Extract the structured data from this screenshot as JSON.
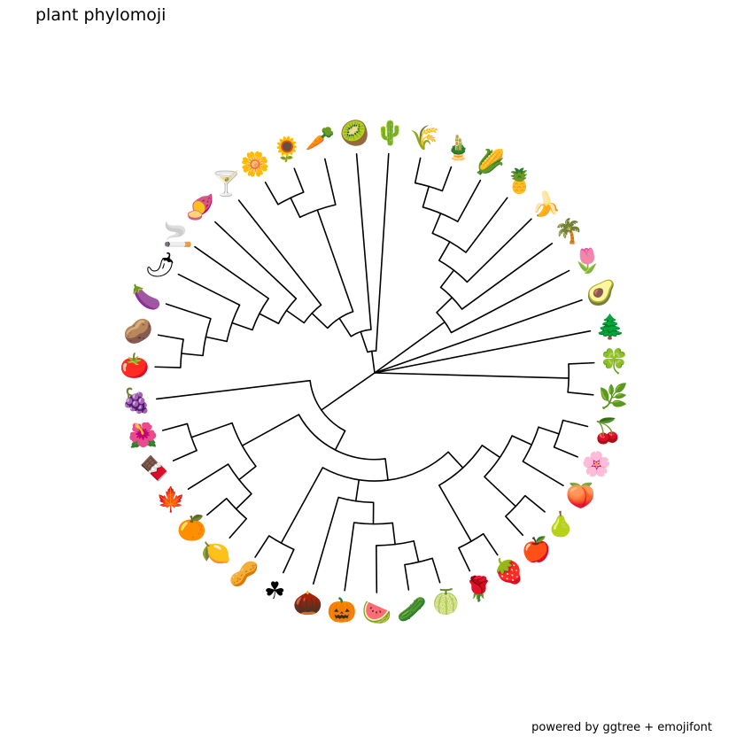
{
  "title": "plant phylomoji",
  "caption": "powered by ggtree + emojifont",
  "colors": {
    "branch": "#000000",
    "background": "#ffffff"
  },
  "tips": [
    {
      "name": "deciduous-tree",
      "glyph": "🌲"
    },
    {
      "name": "avocado",
      "glyph": "🥑"
    },
    {
      "name": "tulip",
      "glyph": "🌷"
    },
    {
      "name": "palm-tree",
      "glyph": "🌴"
    },
    {
      "name": "banana",
      "glyph": "🍌"
    },
    {
      "name": "pineapple",
      "glyph": "🍍"
    },
    {
      "name": "corn",
      "glyph": "🌽"
    },
    {
      "name": "bamboo",
      "glyph": "🎍"
    },
    {
      "name": "wheat",
      "glyph": "🌾"
    },
    {
      "name": "cactus",
      "glyph": "🌵"
    },
    {
      "name": "kiwi",
      "glyph": "🥝"
    },
    {
      "name": "carrot",
      "glyph": "🥕"
    },
    {
      "name": "sunflower",
      "glyph": "🌻"
    },
    {
      "name": "daisy",
      "glyph": "🌼"
    },
    {
      "name": "cocktail",
      "glyph": "🍸"
    },
    {
      "name": "sweet-potato",
      "glyph": "🍠"
    },
    {
      "name": "cigarette",
      "glyph": "🚬"
    },
    {
      "name": "chili-pepper",
      "glyph": "🌶"
    },
    {
      "name": "eggplant",
      "glyph": "🍆"
    },
    {
      "name": "potato",
      "glyph": "🥔"
    },
    {
      "name": "tomato",
      "glyph": "🍅"
    },
    {
      "name": "grapes",
      "glyph": "🍇"
    },
    {
      "name": "hibiscus",
      "glyph": "🌺"
    },
    {
      "name": "chocolate",
      "glyph": "🍫"
    },
    {
      "name": "maple-leaf",
      "glyph": "🍁"
    },
    {
      "name": "tangerine",
      "glyph": "🍊"
    },
    {
      "name": "lemon",
      "glyph": "🍋"
    },
    {
      "name": "peanuts",
      "glyph": "🥜"
    },
    {
      "name": "shamrock",
      "glyph": "☘"
    },
    {
      "name": "chestnut",
      "glyph": "🌰"
    },
    {
      "name": "jack-o-lantern",
      "glyph": "🎃"
    },
    {
      "name": "watermelon",
      "glyph": "🍉"
    },
    {
      "name": "cucumber",
      "glyph": "🥒"
    },
    {
      "name": "melon",
      "glyph": "🍈"
    },
    {
      "name": "rose",
      "glyph": "🌹"
    },
    {
      "name": "strawberry",
      "glyph": "🍓"
    },
    {
      "name": "apple",
      "glyph": "🍎"
    },
    {
      "name": "pear",
      "glyph": "🍐"
    },
    {
      "name": "peach",
      "glyph": "🍑"
    },
    {
      "name": "cherry-blossom",
      "glyph": "🌸"
    },
    {
      "name": "cherries",
      "glyph": "🍒"
    },
    {
      "name": "herb",
      "glyph": "🌿"
    },
    {
      "name": "four-leaf-clover",
      "glyph": "🍀"
    }
  ],
  "tree": [
    "root",
    [
      [
        "tip",
        0
      ],
      [
        "tip",
        1
      ],
      [
        "n",
        [
          [
            "tip",
            2
          ],
          [
            "n",
            [
              [
                "tip",
                3
              ],
              [
                "n",
                [
                  [
                    "tip",
                    4
                  ],
                  [
                    "n",
                    [
                      [
                        "tip",
                        5
                      ],
                      [
                        "n",
                        [
                          [
                            "tip",
                            6
                          ],
                          [
                            "n",
                            [
                              [
                                "tip",
                                7
                              ],
                              [
                                "tip",
                                8
                              ]
                            ]
                          ]
                        ]
                      ]
                    ]
                  ]
                ]
              ]
            ]
          ]
        ]
      ],
      [
        "n",
        [
          [
            "tip",
            9
          ],
          [
            "n",
            [
              [
                "tip",
                10
              ],
              [
                "n",
                [
                  [
                    "n",
                    [
                      [
                        "tip",
                        11
                      ],
                      [
                        "n",
                        [
                          [
                            "tip",
                            12
                          ],
                          [
                            "tip",
                            13
                          ]
                        ]
                      ]
                    ]
                  ],
                  [
                    "n",
                    [
                      [
                        "tip",
                        14
                      ],
                      [
                        "n",
                        [
                          [
                            "tip",
                            15
                          ],
                          [
                            "n",
                            [
                              [
                                "tip",
                                16
                              ],
                              [
                                "n",
                                [
                                  [
                                    "tip",
                                    17
                                  ],
                                  [
                                    "n",
                                    [
                                      [
                                        "tip",
                                        18
                                      ],
                                      [
                                        "n",
                                        [
                                          [
                                            "tip",
                                            19
                                          ],
                                          [
                                            "tip",
                                            20
                                          ]
                                        ]
                                      ]
                                    ]
                                  ]
                                ]
                              ]
                            ]
                          ]
                        ]
                      ]
                    ]
                  ]
                ]
              ]
            ]
          ]
        ]
      ],
      [
        "n",
        [
          [
            "tip",
            21
          ],
          [
            "n",
            [
              [
                "n",
                [
                  [
                    "n",
                    [
                      [
                        "tip",
                        22
                      ],
                      [
                        "tip",
                        23
                      ]
                    ]
                  ],
                  [
                    "n",
                    [
                      [
                        "tip",
                        24
                      ],
                      [
                        "n",
                        [
                          [
                            "tip",
                            25
                          ],
                          [
                            "tip",
                            26
                          ]
                        ]
                      ]
                    ]
                  ]
                ]
              ],
              [
                "n",
                [
                  [
                    "n",
                    [
                      [
                        "tip",
                        27
                      ],
                      [
                        "tip",
                        28
                      ]
                    ]
                  ],
                  [
                    "n",
                    [
                      [
                        "tip",
                        29
                      ],
                      [
                        "n",
                        [
                          [
                            "tip",
                            30
                          ],
                          [
                            "n",
                            [
                              [
                                "tip",
                                31
                              ],
                              [
                                "n",
                                [
                                  [
                                    "tip",
                                    32
                                  ],
                                  [
                                    "tip",
                                    33
                                  ]
                                ]
                              ]
                            ]
                          ]
                        ]
                      ]
                    ]
                  ],
                  [
                    "n",
                    [
                      [
                        "n",
                        [
                          [
                            "tip",
                            34
                          ],
                          [
                            "tip",
                            35
                          ]
                        ]
                      ],
                      [
                        "n",
                        [
                          [
                            "n",
                            [
                              [
                                "tip",
                                36
                              ],
                              [
                                "tip",
                                37
                              ]
                            ]
                          ],
                          [
                            "n",
                            [
                              [
                                "tip",
                                38
                              ],
                              [
                                "n",
                                [
                                  [
                                    "tip",
                                    39
                                  ],
                                  [
                                    "tip",
                                    40
                                  ]
                                ]
                              ]
                            ]
                          ]
                        ]
                      ]
                    ]
                  ]
                ]
              ]
            ]
          ]
        ]
      ],
      [
        "n",
        [
          [
            "tip",
            41
          ],
          [
            "tip",
            42
          ]
        ]
      ]
    ]
  ]
}
